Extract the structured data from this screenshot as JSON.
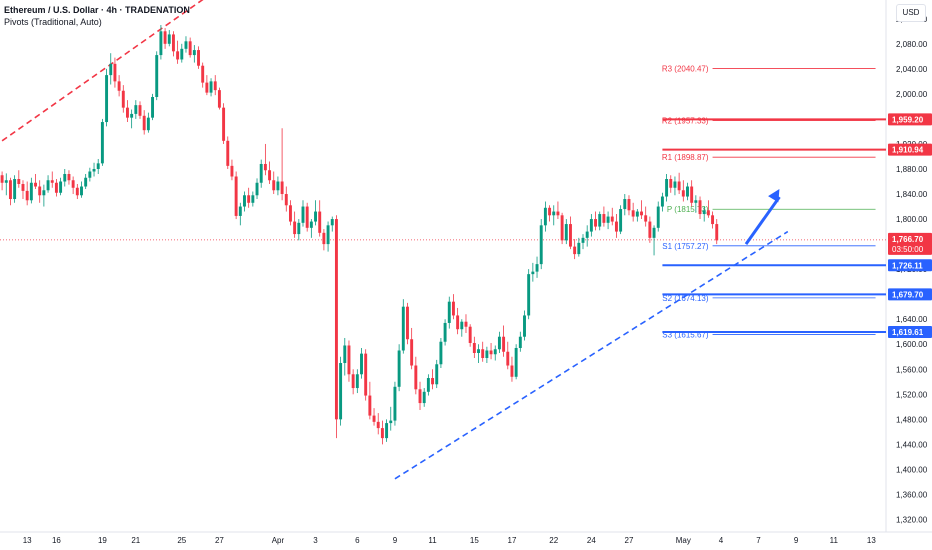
{
  "header": {
    "title": "Ethereum / U.S. Dollar · 4h · TRADENATION",
    "indicator": "Pivots (Traditional, Auto)",
    "currency": "USD"
  },
  "colors": {
    "up": "#089981",
    "down": "#f23645",
    "wick_down": "#f23645",
    "support": "#2962ff",
    "resistance": "#f23645",
    "pivot": "#4caf50",
    "background": "#ffffff",
    "price_line": "#f23645"
  },
  "chart_data": {
    "type": "candlestick",
    "ylim": [
      1300,
      2150
    ],
    "y_ticks": [
      "2,120.00",
      "2,080.00",
      "2,040.00",
      "2,000.00",
      "1,960.00",
      "1,920.00",
      "1,880.00",
      "1,840.00",
      "1,800.00",
      "1,760.00",
      "1,720.00",
      "1,680.00",
      "1,640.00",
      "1,600.00",
      "1,560.00",
      "1,520.00",
      "1,480.00",
      "1,440.00",
      "1,400.00",
      "1,360.00",
      "1,320.00"
    ],
    "x_ticks": [
      {
        "label": "13",
        "index": 6
      },
      {
        "label": "16",
        "index": 13
      },
      {
        "label": "19",
        "index": 24
      },
      {
        "label": "21",
        "index": 32
      },
      {
        "label": "25",
        "index": 43
      },
      {
        "label": "27",
        "index": 52
      },
      {
        "label": "Apr",
        "index": 66
      },
      {
        "label": "3",
        "index": 75
      },
      {
        "label": "6",
        "index": 85
      },
      {
        "label": "9",
        "index": 94
      },
      {
        "label": "11",
        "index": 103
      },
      {
        "label": "15",
        "index": 113
      },
      {
        "label": "17",
        "index": 122
      },
      {
        "label": "22",
        "index": 132
      },
      {
        "label": "24",
        "index": 141
      },
      {
        "label": "27",
        "index": 150
      },
      {
        "label": "May",
        "index": 163
      },
      {
        "label": "4",
        "index": 172
      },
      {
        "label": "7",
        "index": 181
      },
      {
        "label": "9",
        "index": 190
      },
      {
        "label": "11",
        "index": 199
      },
      {
        "label": "13",
        "index": 208
      }
    ],
    "n_slots": 212,
    "candles": [
      [
        1870,
        1876,
        1846,
        1858
      ],
      [
        1858,
        1873,
        1838,
        1862
      ],
      [
        1862,
        1866,
        1822,
        1832
      ],
      [
        1832,
        1870,
        1826,
        1864
      ],
      [
        1864,
        1878,
        1850,
        1856
      ],
      [
        1856,
        1862,
        1832,
        1845
      ],
      [
        1845,
        1860,
        1822,
        1830
      ],
      [
        1830,
        1866,
        1825,
        1858
      ],
      [
        1858,
        1872,
        1848,
        1852
      ],
      [
        1852,
        1862,
        1826,
        1838
      ],
      [
        1838,
        1855,
        1820,
        1846
      ],
      [
        1846,
        1870,
        1842,
        1862
      ],
      [
        1862,
        1876,
        1850,
        1858
      ],
      [
        1858,
        1864,
        1836,
        1842
      ],
      [
        1842,
        1866,
        1838,
        1860
      ],
      [
        1860,
        1880,
        1852,
        1872
      ],
      [
        1872,
        1878,
        1855,
        1862
      ],
      [
        1862,
        1868,
        1840,
        1850
      ],
      [
        1850,
        1856,
        1832,
        1838
      ],
      [
        1838,
        1860,
        1834,
        1852
      ],
      [
        1852,
        1872,
        1848,
        1866
      ],
      [
        1866,
        1882,
        1860,
        1876
      ],
      [
        1876,
        1890,
        1868,
        1880
      ],
      [
        1880,
        1896,
        1872,
        1889
      ],
      [
        1889,
        1960,
        1885,
        1955
      ],
      [
        1955,
        2040,
        1948,
        2030
      ],
      [
        2030,
        2065,
        2015,
        2048
      ],
      [
        2048,
        2058,
        2010,
        2020
      ],
      [
        2020,
        2030,
        1996,
        2005
      ],
      [
        2005,
        2014,
        1970,
        1978
      ],
      [
        1978,
        1990,
        1955,
        1962
      ],
      [
        1962,
        1975,
        1945,
        1968
      ],
      [
        1968,
        1990,
        1960,
        1982
      ],
      [
        1982,
        1988,
        1960,
        1965
      ],
      [
        1965,
        1974,
        1935,
        1942
      ],
      [
        1942,
        1970,
        1938,
        1962
      ],
      [
        1962,
        2000,
        1958,
        1995
      ],
      [
        1995,
        2068,
        1990,
        2062
      ],
      [
        2062,
        2110,
        2055,
        2100
      ],
      [
        2100,
        2105,
        2072,
        2080
      ],
      [
        2080,
        2102,
        2076,
        2095
      ],
      [
        2095,
        2100,
        2060,
        2068
      ],
      [
        2068,
        2085,
        2048,
        2055
      ],
      [
        2055,
        2080,
        2050,
        2072
      ],
      [
        2072,
        2092,
        2066,
        2084
      ],
      [
        2084,
        2090,
        2058,
        2062
      ],
      [
        2062,
        2078,
        2050,
        2070
      ],
      [
        2070,
        2076,
        2040,
        2045
      ],
      [
        2045,
        2050,
        2010,
        2018
      ],
      [
        2018,
        2030,
        1998,
        2002
      ],
      [
        2002,
        2025,
        1996,
        2020
      ],
      [
        2020,
        2030,
        1998,
        2006
      ],
      [
        2006,
        2010,
        1975,
        1978
      ],
      [
        1978,
        1985,
        1920,
        1925
      ],
      [
        1925,
        1932,
        1880,
        1885
      ],
      [
        1885,
        1895,
        1862,
        1868
      ],
      [
        1868,
        1876,
        1800,
        1805
      ],
      [
        1805,
        1826,
        1790,
        1820
      ],
      [
        1820,
        1844,
        1812,
        1838
      ],
      [
        1838,
        1850,
        1818,
        1826
      ],
      [
        1826,
        1844,
        1820,
        1838
      ],
      [
        1838,
        1865,
        1832,
        1858
      ],
      [
        1858,
        1895,
        1850,
        1888
      ],
      [
        1888,
        1920,
        1870,
        1878
      ],
      [
        1878,
        1892,
        1856,
        1862
      ],
      [
        1862,
        1876,
        1840,
        1846
      ],
      [
        1846,
        1868,
        1838,
        1860
      ],
      [
        1860,
        1945,
        1830,
        1840
      ],
      [
        1840,
        1852,
        1812,
        1822
      ],
      [
        1822,
        1830,
        1790,
        1796
      ],
      [
        1796,
        1812,
        1770,
        1776
      ],
      [
        1776,
        1800,
        1766,
        1794
      ],
      [
        1794,
        1830,
        1788,
        1820
      ],
      [
        1820,
        1826,
        1780,
        1786
      ],
      [
        1786,
        1800,
        1770,
        1796
      ],
      [
        1796,
        1830,
        1790,
        1812
      ],
      [
        1812,
        1830,
        1772,
        1778
      ],
      [
        1778,
        1784,
        1750,
        1760
      ],
      [
        1760,
        1796,
        1748,
        1790
      ],
      [
        1790,
        1804,
        1780,
        1800
      ],
      [
        1800,
        1806,
        1450,
        1480
      ],
      [
        1480,
        1580,
        1470,
        1570
      ],
      [
        1570,
        1610,
        1550,
        1598
      ],
      [
        1598,
        1606,
        1540,
        1552
      ],
      [
        1552,
        1560,
        1520,
        1530
      ],
      [
        1530,
        1560,
        1522,
        1552
      ],
      [
        1552,
        1594,
        1545,
        1585
      ],
      [
        1585,
        1592,
        1510,
        1518
      ],
      [
        1518,
        1540,
        1480,
        1486
      ],
      [
        1486,
        1498,
        1470,
        1476
      ],
      [
        1476,
        1490,
        1456,
        1466
      ],
      [
        1466,
        1478,
        1440,
        1450
      ],
      [
        1450,
        1480,
        1444,
        1474
      ],
      [
        1474,
        1500,
        1462,
        1478
      ],
      [
        1478,
        1540,
        1470,
        1532
      ],
      [
        1532,
        1600,
        1525,
        1590
      ],
      [
        1590,
        1672,
        1585,
        1660
      ],
      [
        1660,
        1666,
        1600,
        1608
      ],
      [
        1608,
        1626,
        1560,
        1566
      ],
      [
        1566,
        1580,
        1520,
        1528
      ],
      [
        1528,
        1540,
        1495,
        1506
      ],
      [
        1506,
        1530,
        1500,
        1524
      ],
      [
        1524,
        1552,
        1518,
        1546
      ],
      [
        1546,
        1560,
        1528,
        1536
      ],
      [
        1536,
        1575,
        1530,
        1568
      ],
      [
        1568,
        1610,
        1562,
        1604
      ],
      [
        1604,
        1640,
        1598,
        1634
      ],
      [
        1634,
        1676,
        1625,
        1668
      ],
      [
        1668,
        1680,
        1640,
        1646
      ],
      [
        1646,
        1658,
        1616,
        1624
      ],
      [
        1624,
        1640,
        1612,
        1636
      ],
      [
        1636,
        1648,
        1618,
        1628
      ],
      [
        1628,
        1632,
        1596,
        1602
      ],
      [
        1602,
        1612,
        1578,
        1586
      ],
      [
        1586,
        1600,
        1570,
        1592
      ],
      [
        1592,
        1604,
        1572,
        1578
      ],
      [
        1578,
        1596,
        1570,
        1590
      ],
      [
        1590,
        1602,
        1576,
        1584
      ],
      [
        1584,
        1598,
        1574,
        1592
      ],
      [
        1592,
        1620,
        1586,
        1612
      ],
      [
        1612,
        1630,
        1580,
        1588
      ],
      [
        1588,
        1604,
        1560,
        1566
      ],
      [
        1566,
        1580,
        1540,
        1548
      ],
      [
        1548,
        1600,
        1544,
        1594
      ],
      [
        1594,
        1620,
        1588,
        1612
      ],
      [
        1612,
        1654,
        1606,
        1646
      ],
      [
        1646,
        1720,
        1640,
        1712
      ],
      [
        1712,
        1730,
        1700,
        1716
      ],
      [
        1716,
        1740,
        1706,
        1728
      ],
      [
        1728,
        1800,
        1720,
        1790
      ],
      [
        1790,
        1828,
        1780,
        1818
      ],
      [
        1818,
        1822,
        1796,
        1806
      ],
      [
        1806,
        1822,
        1790,
        1812
      ],
      [
        1812,
        1828,
        1800,
        1806
      ],
      [
        1806,
        1810,
        1760,
        1766
      ],
      [
        1766,
        1800,
        1760,
        1792
      ],
      [
        1792,
        1804,
        1752,
        1756
      ],
      [
        1756,
        1768,
        1736,
        1744
      ],
      [
        1744,
        1770,
        1740,
        1762
      ],
      [
        1762,
        1776,
        1752,
        1770
      ],
      [
        1770,
        1790,
        1756,
        1780
      ],
      [
        1780,
        1808,
        1772,
        1800
      ],
      [
        1800,
        1812,
        1782,
        1788
      ],
      [
        1788,
        1812,
        1782,
        1808
      ],
      [
        1808,
        1820,
        1788,
        1794
      ],
      [
        1794,
        1812,
        1784,
        1804
      ],
      [
        1804,
        1818,
        1790,
        1796
      ],
      [
        1796,
        1808,
        1770,
        1780
      ],
      [
        1780,
        1822,
        1776,
        1816
      ],
      [
        1816,
        1840,
        1806,
        1832
      ],
      [
        1832,
        1838,
        1806,
        1814
      ],
      [
        1814,
        1826,
        1796,
        1804
      ],
      [
        1804,
        1816,
        1796,
        1812
      ],
      [
        1812,
        1830,
        1800,
        1806
      ],
      [
        1806,
        1820,
        1788,
        1796
      ],
      [
        1796,
        1804,
        1762,
        1770
      ],
      [
        1770,
        1790,
        1742,
        1786
      ],
      [
        1786,
        1828,
        1780,
        1820
      ],
      [
        1820,
        1842,
        1812,
        1836
      ],
      [
        1836,
        1872,
        1828,
        1864
      ],
      [
        1864,
        1870,
        1842,
        1850
      ],
      [
        1850,
        1868,
        1838,
        1860
      ],
      [
        1860,
        1874,
        1840,
        1846
      ],
      [
        1846,
        1862,
        1828,
        1836
      ],
      [
        1836,
        1858,
        1830,
        1852
      ],
      [
        1852,
        1862,
        1820,
        1826
      ],
      [
        1826,
        1838,
        1810,
        1830
      ],
      [
        1830,
        1836,
        1800,
        1808
      ],
      [
        1808,
        1820,
        1796,
        1814
      ],
      [
        1814,
        1830,
        1802,
        1806
      ],
      [
        1806,
        1812,
        1785,
        1792
      ],
      [
        1792,
        1800,
        1760,
        1766
      ]
    ],
    "pivot_levels": [
      {
        "label": "R3 (2040.47)",
        "value": 2040.47,
        "color": "#f23645"
      },
      {
        "label": "R2 (1957.33)",
        "value": 1957.33,
        "color": "#f23645"
      },
      {
        "label": "R1 (1898.87)",
        "value": 1898.87,
        "color": "#f23645"
      },
      {
        "label": "P (1815.73)",
        "value": 1815.73,
        "color": "#4caf50"
      },
      {
        "label": "S1 (1757.27)",
        "value": 1757.27,
        "color": "#2962ff"
      },
      {
        "label": "S2 (1674.13)",
        "value": 1674.13,
        "color": "#2962ff"
      },
      {
        "label": "S3 (1615.67)",
        "value": 1615.67,
        "color": "#2962ff"
      }
    ],
    "horizontal_levels": [
      {
        "value": 1959.2,
        "label": "1,959.20",
        "color": "#f23645"
      },
      {
        "value": 1910.94,
        "label": "1,910.94",
        "color": "#f23645"
      },
      {
        "value": 1726.11,
        "label": "1,726.11",
        "color": "#2962ff"
      },
      {
        "value": 1679.7,
        "label": "1,679.70",
        "color": "#2962ff"
      },
      {
        "value": 1619.61,
        "label": "1,619.61",
        "color": "#2962ff"
      }
    ],
    "current_price": {
      "value": 1766.7,
      "label": "1,766.70",
      "countdown": "03:50:00"
    },
    "trendlines": [
      {
        "name": "descending-resistance",
        "from": [
          0,
          1925
        ],
        "to": [
          42,
          2125
        ],
        "color": "#f23645",
        "extend_to": [
          50,
          2160
        ]
      },
      {
        "name": "ascending-support",
        "from": [
          94,
          1385
        ],
        "to": [
          188,
          1780
        ],
        "color": "#2962ff"
      }
    ],
    "arrow": {
      "from": [
        178,
        1760
      ],
      "to": [
        186,
        1848
      ],
      "color": "#2962ff"
    }
  }
}
